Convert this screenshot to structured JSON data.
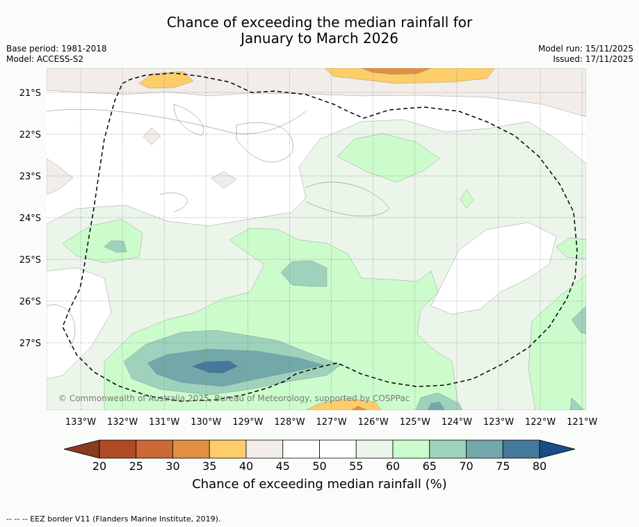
{
  "title_line1": "Chance of exceeding the median rainfall for",
  "title_line2": "January to March 2026",
  "base_period": "Base period: 1981-2018",
  "model": "Model: ACCESS-S2",
  "model_run": "Model run: 15/11/2025",
  "issued": "Issued: 17/11/2025",
  "copyright": "© Commonwealth of Australia 2025, Bureau of Meteorology, supported by COSPPac",
  "lat_labels": [
    "21°S",
    "22°S",
    "23°S",
    "24°S",
    "25°S",
    "26°S",
    "27°S"
  ],
  "lon_labels": [
    "133°W",
    "132°W",
    "131°W",
    "130°W",
    "129°W",
    "128°W",
    "127°W",
    "126°W",
    "125°W",
    "124°W",
    "123°W",
    "122°W",
    "121°W"
  ],
  "colorbar": {
    "ticks": [
      "20",
      "25",
      "30",
      "35",
      "40",
      "45",
      "50",
      "55",
      "60",
      "65",
      "70",
      "75",
      "80"
    ],
    "label": "Chance of exceeding median rainfall (%)",
    "colors": {
      "below20": "#8a3a1e",
      "c20_25": "#b04a25",
      "c25_30": "#cc6833",
      "c30_35": "#e09040",
      "c35_40": "#fdcd6a",
      "c40_45": "#f2ede8",
      "c45_50": "#ffffff",
      "c50_55": "#ffffff",
      "c55_60": "#ebf5ea",
      "c60_65": "#ccfccc",
      "c65_70": "#9ed2bc",
      "c70_75": "#72a8aa",
      "c75_80": "#44799a",
      "above80": "#1a4d86"
    }
  },
  "footnote": "--  --  -- EEZ border V11 (Flanders Marine Institute, 2019)."
}
